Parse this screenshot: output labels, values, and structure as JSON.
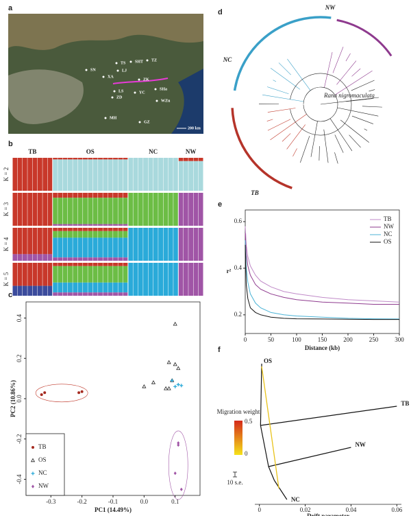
{
  "panels": {
    "a": {
      "label": "a",
      "map_labels": [
        "TS",
        "SHT",
        "TZ",
        "SN",
        "LJ",
        "XA",
        "ZK",
        "LS",
        "ZD",
        "YC",
        "SHa",
        "WZu",
        "MH",
        "GZ"
      ],
      "scale": "200 km"
    },
    "b": {
      "label": "b",
      "groups": [
        "TB",
        "OS",
        "NC",
        "NW"
      ],
      "sample_counts": [
        8,
        15,
        10,
        5
      ],
      "clusters": [
        "#c8382a",
        "#a9d9dd",
        "#6cbd45",
        "#2aaad9",
        "#a055a6",
        "#3b4b9c"
      ],
      "rows": [
        {
          "k": "K = 2",
          "blocks": [
            [
              1,
              0,
              0,
              0,
              0,
              0
            ],
            [
              0.05,
              0.95,
              0,
              0,
              0,
              0
            ],
            [
              0,
              1,
              0,
              0,
              0,
              0
            ],
            [
              0.1,
              0.9,
              0,
              0,
              0,
              0
            ]
          ]
        },
        {
          "k": "K = 3",
          "blocks": [
            [
              1,
              0,
              0,
              0,
              0,
              0
            ],
            [
              0.15,
              0,
              0.8,
              0,
              0.05,
              0
            ],
            [
              0,
              0,
              1,
              0,
              0,
              0
            ],
            [
              0,
              0,
              0,
              0,
              1,
              0
            ]
          ]
        },
        {
          "k": "K = 4",
          "blocks": [
            [
              0.8,
              0,
              0,
              0,
              0.2,
              0
            ],
            [
              0.1,
              0,
              0.2,
              0.6,
              0.1,
              0
            ],
            [
              0,
              0,
              0,
              1,
              0,
              0
            ],
            [
              0,
              0,
              0,
              0,
              1,
              0
            ]
          ]
        },
        {
          "k": "K = 5",
          "blocks": [
            [
              0.7,
              0,
              0,
              0,
              0,
              0.3
            ],
            [
              0.1,
              0,
              0.5,
              0.3,
              0.1,
              0
            ],
            [
              0,
              0,
              0,
              1,
              0,
              0
            ],
            [
              0,
              0,
              0,
              0,
              1,
              0
            ]
          ]
        }
      ]
    },
    "c": {
      "label": "c",
      "type": "scatter",
      "xlabel": "PC1 (14.49%)",
      "ylabel": "PC2 (10.86%)",
      "xlim": [
        -0.38,
        0.18
      ],
      "xticks": [
        -0.3,
        -0.2,
        -0.1,
        {
          "value": 0,
          "label": "0.0"
        },
        0.1
      ],
      "ylim": [
        -0.48,
        0.48
      ],
      "yticks": [
        -0.4,
        -0.2,
        {
          "value": 0,
          "label": "0.0"
        },
        0.2,
        0.4
      ],
      "series": [
        {
          "name": "TB",
          "color": "#a52a1f",
          "marker": "circle",
          "x": [
            -0.33,
            -0.32,
            -0.21,
            -0.2
          ],
          "y": [
            0.02,
            0.03,
            0.03,
            0.035
          ]
        },
        {
          "name": "OS",
          "color": "#222",
          "marker": "triangle",
          "x": [
            0.1,
            0.08,
            0.1,
            0.11,
            0.03,
            0.0,
            0.08,
            0.07,
            0.09
          ],
          "y": [
            0.37,
            0.18,
            0.17,
            0.15,
            0.08,
            0.06,
            0.05,
            0.05,
            0.09
          ]
        },
        {
          "name": "NC",
          "color": "#29a9d8",
          "marker": "cross",
          "x": [
            0.09,
            0.1,
            0.11,
            0.12
          ],
          "y": [
            0.09,
            0.06,
            0.07,
            0.065
          ]
        },
        {
          "name": "NW",
          "color": "#a055a6",
          "marker": "diamond",
          "x": [
            0.11,
            0.11,
            0.1,
            0.12
          ],
          "y": [
            -0.22,
            -0.23,
            -0.37,
            -0.45
          ]
        }
      ]
    },
    "d": {
      "label": "d",
      "clades": [
        "NW",
        "NC",
        "TB"
      ],
      "outgroup": "Rana nigromaculata"
    },
    "e": {
      "label": "e",
      "type": "line",
      "xlabel": "Distance (kb)",
      "ylabel": "r²",
      "x": [
        0,
        2,
        5,
        10,
        20,
        30,
        50,
        75,
        100,
        150,
        200,
        250,
        300
      ],
      "xlim": [
        0,
        300
      ],
      "xticks": [
        0,
        50,
        100,
        150,
        200,
        250,
        300
      ],
      "ylim": [
        0.12,
        0.65
      ],
      "yticks": [
        0.2,
        0.4,
        0.6
      ],
      "series": [
        {
          "name": "TB",
          "color": "#c08ac8",
          "values": [
            0.58,
            0.5,
            0.45,
            0.41,
            0.37,
            0.345,
            0.32,
            0.3,
            0.29,
            0.275,
            0.265,
            0.26,
            0.255
          ]
        },
        {
          "name": "NW",
          "color": "#8e3a8e",
          "values": [
            0.55,
            0.46,
            0.41,
            0.37,
            0.33,
            0.31,
            0.29,
            0.275,
            0.265,
            0.255,
            0.25,
            0.245,
            0.245
          ]
        },
        {
          "name": "NC",
          "color": "#4bb3d6",
          "values": [
            0.52,
            0.4,
            0.34,
            0.29,
            0.25,
            0.23,
            0.21,
            0.2,
            0.195,
            0.19,
            0.185,
            0.183,
            0.182
          ]
        },
        {
          "name": "OS",
          "color": "#111",
          "values": [
            0.5,
            0.33,
            0.27,
            0.23,
            0.21,
            0.2,
            0.19,
            0.185,
            0.183,
            0.182,
            0.181,
            0.18,
            0.18
          ]
        }
      ]
    },
    "f": {
      "label": "f",
      "xlabel": "Drift parameter",
      "xlim": [
        -0.002,
        0.062
      ],
      "xticks": [
        0,
        0.02,
        0.04,
        0.06
      ],
      "leaves": [
        "OS",
        "TB",
        "NW",
        "NC"
      ],
      "drift": [
        0.001,
        0.06,
        0.04,
        0.012
      ],
      "legend_title": "Migration weight",
      "legend_max": "0.5",
      "legend_min": "0",
      "scale_bar": "10 s.e."
    }
  }
}
